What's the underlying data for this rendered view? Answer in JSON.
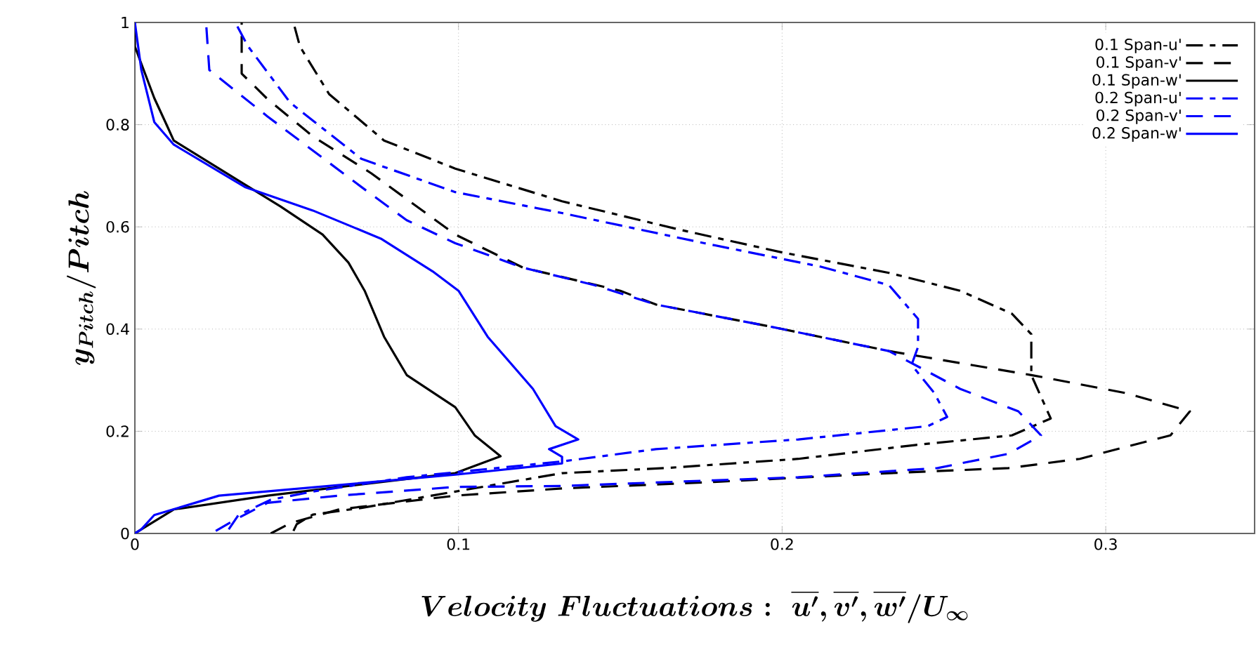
{
  "chart_data": {
    "type": "line",
    "xlabel": "\\boldsymbol{Velocity\\ Fluctuations:\\ \\overline{u'},\\overline{v'},\\overline{w'}/U_{\\infty}}",
    "ylabel": "\\boldsymbol{y_{Pitch}/Pitch}",
    "xlim": [
      0,
      0.346
    ],
    "ylim": [
      0,
      1
    ],
    "xticks": [
      0,
      0.1,
      0.2,
      0.3
    ],
    "yticks": [
      0,
      0.2,
      0.4,
      0.6,
      0.8,
      1
    ],
    "grid": true,
    "legend": "top right",
    "series": [
      {
        "name": "0.1 Span-u'",
        "color": "#000000",
        "line_style": "dashdot",
        "x": [
          0.049,
          0.05,
          0.055,
          0.07,
          0.099,
          0.132,
          0.164,
          0.205,
          0.241,
          0.271,
          0.283,
          0.277,
          0.277,
          0.271,
          0.255,
          0.233,
          0.2,
          0.168,
          0.132,
          0.099,
          0.077,
          0.06,
          0.051,
          0.049
        ],
        "values": [
          0.005,
          0.018,
          0.037,
          0.05,
          0.082,
          0.118,
          0.128,
          0.146,
          0.173,
          0.192,
          0.225,
          0.31,
          0.39,
          0.43,
          0.475,
          0.51,
          0.55,
          0.595,
          0.65,
          0.714,
          0.769,
          0.86,
          0.953,
          1.0
        ]
      },
      {
        "name": "0.1 Span-v'",
        "color": "#000000",
        "line_style": "dashed",
        "x": [
          0.042,
          0.048,
          0.063,
          0.099,
          0.132,
          0.176,
          0.233,
          0.27,
          0.292,
          0.32,
          0.326,
          0.306,
          0.277,
          0.233,
          0.197,
          0.161,
          0.15,
          0.12,
          0.099,
          0.073,
          0.055,
          0.041,
          0.033,
          0.033
        ],
        "values": [
          0.0,
          0.02,
          0.047,
          0.074,
          0.088,
          0.1,
          0.118,
          0.128,
          0.146,
          0.192,
          0.239,
          0.275,
          0.31,
          0.357,
          0.404,
          0.448,
          0.475,
          0.52,
          0.585,
          0.705,
          0.777,
          0.85,
          0.9,
          1.0
        ]
      },
      {
        "name": "0.1 Span-w'",
        "color": "#000000",
        "line_style": "solid",
        "x": [
          0.0,
          0.002,
          0.012,
          0.041,
          0.099,
          0.113,
          0.105,
          0.099,
          0.084,
          0.077,
          0.071,
          0.066,
          0.058,
          0.045,
          0.026,
          0.012,
          0.01,
          0.006,
          0.0,
          0.0
        ],
        "values": [
          0.0,
          0.008,
          0.047,
          0.074,
          0.118,
          0.151,
          0.192,
          0.247,
          0.31,
          0.385,
          0.475,
          0.53,
          0.585,
          0.64,
          0.714,
          0.769,
          0.797,
          0.852,
          0.953,
          1.0
        ]
      },
      {
        "name": "0.2 Span-u'",
        "color": "#0000ff",
        "line_style": "dashdot",
        "x": [
          0.029,
          0.032,
          0.042,
          0.055,
          0.084,
          0.132,
          0.161,
          0.205,
          0.245,
          0.251,
          0.247,
          0.24,
          0.242,
          0.242,
          0.233,
          0.212,
          0.176,
          0.132,
          0.099,
          0.07,
          0.048,
          0.035,
          0.031
        ],
        "values": [
          0.008,
          0.036,
          0.066,
          0.082,
          0.11,
          0.141,
          0.165,
          0.184,
          0.21,
          0.228,
          0.275,
          0.33,
          0.365,
          0.42,
          0.486,
          0.522,
          0.568,
          0.627,
          0.668,
          0.733,
          0.843,
          0.953,
          1.0
        ]
      },
      {
        "name": "0.2 Span-v'",
        "color": "#0000ff",
        "line_style": "dashed",
        "x": [
          0.025,
          0.031,
          0.041,
          0.063,
          0.099,
          0.132,
          0.205,
          0.248,
          0.27,
          0.28,
          0.273,
          0.255,
          0.233,
          0.197,
          0.161,
          0.142,
          0.12,
          0.099,
          0.084,
          0.07,
          0.041,
          0.023,
          0.022
        ],
        "values": [
          0.005,
          0.027,
          0.06,
          0.074,
          0.091,
          0.093,
          0.11,
          0.128,
          0.156,
          0.192,
          0.239,
          0.283,
          0.357,
          0.404,
          0.448,
          0.486,
          0.52,
          0.568,
          0.613,
          0.678,
          0.816,
          0.907,
          1.0
        ]
      },
      {
        "name": "0.2 Span-w'",
        "color": "#0000ff",
        "line_style": "solid",
        "x": [
          0.0,
          0.002,
          0.006,
          0.026,
          0.099,
          0.132,
          0.132,
          0.128,
          0.137,
          0.13,
          0.123,
          0.109,
          0.1,
          0.092,
          0.076,
          0.055,
          0.034,
          0.012,
          0.006,
          0.002,
          0.0
        ],
        "values": [
          0.0,
          0.008,
          0.036,
          0.074,
          0.115,
          0.137,
          0.15,
          0.165,
          0.184,
          0.21,
          0.283,
          0.385,
          0.475,
          0.513,
          0.577,
          0.632,
          0.678,
          0.761,
          0.805,
          0.907,
          1.0
        ]
      }
    ]
  }
}
